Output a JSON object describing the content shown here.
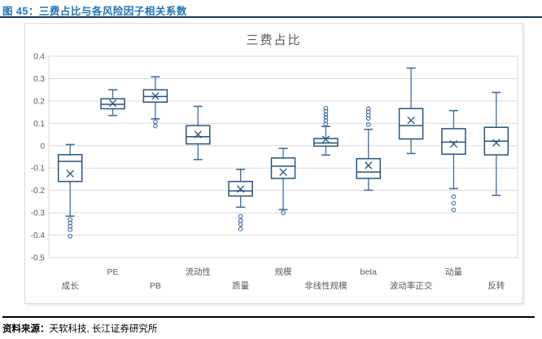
{
  "header": {
    "title": "图 45：三费占比与各风险因子相关系数",
    "accent_color": "#1E73B5",
    "underline_color": "#17365D"
  },
  "footer": {
    "label": "资料来源：",
    "text": "天软科技, 长江证券研究所"
  },
  "chart_data": {
    "type": "boxplot",
    "title": "三费占比",
    "ylim": [
      -0.5,
      0.4
    ],
    "ytick_labels": [
      "0.4",
      "0.3",
      "0.2",
      "0.1",
      "0",
      "-0.1",
      "-0.2",
      "-0.3",
      "-0.4",
      "-0.5"
    ],
    "grid": true,
    "legend": "none",
    "categories": [
      "成长",
      "PE",
      "PB",
      "流动性",
      "质量",
      "规模",
      "非线性规模",
      "beta",
      "波动率正交",
      "动量",
      "反转"
    ],
    "series": [
      {
        "name": "成长",
        "label_row": "lower",
        "whisker_lo": -0.315,
        "q1": -0.16,
        "median": -0.07,
        "q3": -0.04,
        "whisker_hi": 0.005,
        "mean": -0.125,
        "outliers": [
          -0.33,
          -0.345,
          -0.36,
          -0.375,
          -0.405
        ]
      },
      {
        "name": "PE",
        "label_row": "upper",
        "whisker_lo": 0.135,
        "q1": 0.165,
        "median": 0.185,
        "q3": 0.21,
        "whisker_hi": 0.25,
        "mean": 0.19,
        "outliers": []
      },
      {
        "name": "PB",
        "label_row": "lower",
        "whisker_lo": 0.12,
        "q1": 0.195,
        "median": 0.22,
        "q3": 0.25,
        "whisker_hi": 0.308,
        "mean": 0.222,
        "outliers": [
          0.107,
          0.088
        ]
      },
      {
        "name": "流动性",
        "label_row": "upper",
        "whisker_lo": -0.062,
        "q1": 0.008,
        "median": 0.04,
        "q3": 0.09,
        "whisker_hi": 0.176,
        "mean": 0.05,
        "outliers": []
      },
      {
        "name": "质量",
        "label_row": "lower",
        "whisker_lo": -0.275,
        "q1": -0.225,
        "median": -0.202,
        "q3": -0.16,
        "whisker_hi": -0.106,
        "mean": -0.194,
        "outliers": [
          -0.316,
          -0.335,
          -0.352,
          -0.372
        ]
      },
      {
        "name": "规模",
        "label_row": "upper",
        "whisker_lo": -0.286,
        "q1": -0.146,
        "median": -0.092,
        "q3": -0.055,
        "whisker_hi": -0.012,
        "mean": -0.118,
        "outliers": [
          -0.3
        ]
      },
      {
        "name": "非线性规模",
        "label_row": "lower",
        "whisker_lo": -0.042,
        "q1": -0.002,
        "median": 0.012,
        "q3": 0.032,
        "whisker_hi": 0.086,
        "mean": 0.028,
        "outliers": [
          0.097,
          0.113,
          0.127,
          0.14,
          0.154,
          0.168
        ]
      },
      {
        "name": "beta",
        "label_row": "upper",
        "whisker_lo": -0.199,
        "q1": -0.146,
        "median": -0.118,
        "q3": -0.058,
        "whisker_hi": 0.073,
        "mean": -0.088,
        "outliers": [
          0.095,
          0.122,
          0.136,
          0.151,
          0.165
        ]
      },
      {
        "name": "波动率正交",
        "label_row": "lower",
        "whisker_lo": -0.035,
        "q1": 0.03,
        "median": 0.09,
        "q3": 0.166,
        "whisker_hi": 0.347,
        "mean": 0.113,
        "outliers": []
      },
      {
        "name": "动量",
        "label_row": "upper",
        "whisker_lo": -0.192,
        "q1": -0.038,
        "median": 0.016,
        "q3": 0.076,
        "whisker_hi": 0.157,
        "mean": 0.008,
        "outliers": [
          -0.228,
          -0.257,
          -0.287
        ]
      },
      {
        "name": "反转",
        "label_row": "lower",
        "whisker_lo": -0.222,
        "q1": -0.041,
        "median": 0.02,
        "q3": 0.082,
        "whisker_hi": 0.238,
        "mean": 0.013,
        "outliers": []
      }
    ],
    "colors": {
      "box_stroke": "#26537F",
      "whisker_stroke": "#3E6DA3",
      "grid": "#D9D9D9",
      "text": "#595959",
      "box_fill": "#FFFFFF"
    }
  }
}
